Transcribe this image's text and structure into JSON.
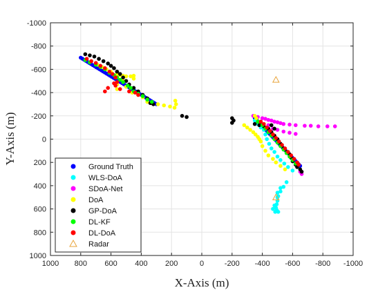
{
  "chart_data": {
    "type": "scatter",
    "xlabel": "X-Axis (m)",
    "ylabel": "Y-Axis (m)",
    "xlim": [
      1000,
      -1000
    ],
    "ylim": [
      1000,
      -1000
    ],
    "x_reversed": true,
    "y_reversed": true,
    "xticks": [
      1000,
      800,
      600,
      400,
      200,
      0,
      -200,
      -400,
      -600,
      -800,
      -1000
    ],
    "yticks": [
      -1000,
      -800,
      -600,
      -400,
      -200,
      0,
      200,
      400,
      600,
      800,
      1000
    ],
    "xtick_labels": [
      "1000",
      "800",
      "600",
      "400",
      "200",
      "0",
      "-200",
      "-400",
      "-600",
      "-800",
      "-1000"
    ],
    "ytick_labels": [
      "-1000",
      "-800",
      "-600",
      "-400",
      "-200",
      "0",
      "200",
      "400",
      "600",
      "800",
      "1000"
    ],
    "grid": true,
    "legend_position": "bottom-left",
    "series": [
      {
        "name": "Ground Truth",
        "color": "#0000ff",
        "marker": "circle",
        "segments": [
          {
            "from": [
              800,
              -700
            ],
            "to": [
              300,
              -300
            ],
            "count": 45
          },
          {
            "from": [
              -350,
              -180
            ],
            "to": [
              -650,
              230
            ],
            "count": 40
          }
        ]
      },
      {
        "name": "WLS-DoA",
        "color": "#00ffff",
        "marker": "circle",
        "points": [
          [
            -350,
            -160
          ],
          [
            -370,
            -130
          ],
          [
            -390,
            -100
          ],
          [
            -410,
            -80
          ],
          [
            -420,
            -40
          ],
          [
            -430,
            0
          ],
          [
            -445,
            40
          ],
          [
            -460,
            80
          ],
          [
            -480,
            110
          ],
          [
            -500,
            150
          ],
          [
            -520,
            180
          ],
          [
            -545,
            210
          ],
          [
            -570,
            240
          ],
          [
            -600,
            270
          ],
          [
            -560,
            370
          ],
          [
            -540,
            410
          ],
          [
            -520,
            450
          ],
          [
            -505,
            490
          ],
          [
            -500,
            530
          ],
          [
            -495,
            560
          ],
          [
            -490,
            590
          ],
          [
            -495,
            610
          ],
          [
            -505,
            625
          ],
          [
            -485,
            625
          ],
          [
            -470,
            600
          ],
          [
            -480,
            570
          ],
          [
            -500,
            500
          ],
          [
            -500,
            460
          ],
          [
            -520,
            420
          ]
        ]
      },
      {
        "name": "SDoA-Net",
        "color": "#ff00ff",
        "marker": "circle",
        "points": [
          [
            -340,
            -200
          ],
          [
            -370,
            -190
          ],
          [
            -400,
            -180
          ],
          [
            -420,
            -175
          ],
          [
            -440,
            -165
          ],
          [
            -460,
            -160
          ],
          [
            -480,
            -150
          ],
          [
            -500,
            -145
          ],
          [
            -520,
            -138
          ],
          [
            -540,
            -130
          ],
          [
            -580,
            -125
          ],
          [
            -620,
            -120
          ],
          [
            -680,
            -115
          ],
          [
            -720,
            -115
          ],
          [
            -770,
            -110
          ],
          [
            -830,
            -110
          ],
          [
            -880,
            -110
          ],
          [
            -440,
            -120
          ],
          [
            -470,
            -90
          ],
          [
            -500,
            -80
          ],
          [
            -540,
            -65
          ],
          [
            -580,
            -55
          ],
          [
            -620,
            -45
          ],
          [
            -650,
            280
          ],
          [
            -660,
            300
          ]
        ]
      },
      {
        "name": "DoA",
        "color": "#ffff00",
        "marker": "circle",
        "points": [
          [
            690,
            -640
          ],
          [
            660,
            -620
          ],
          [
            630,
            -600
          ],
          [
            600,
            -580
          ],
          [
            560,
            -560
          ],
          [
            540,
            -550
          ],
          [
            520,
            -545
          ],
          [
            500,
            -540
          ],
          [
            470,
            -540
          ],
          [
            450,
            -545
          ],
          [
            450,
            -520
          ],
          [
            520,
            -500
          ],
          [
            560,
            -470
          ],
          [
            560,
            -430
          ],
          [
            500,
            -450
          ],
          [
            460,
            -400
          ],
          [
            420,
            -380
          ],
          [
            390,
            -360
          ],
          [
            360,
            -320
          ],
          [
            330,
            -310
          ],
          [
            290,
            -300
          ],
          [
            250,
            -290
          ],
          [
            210,
            -280
          ],
          [
            180,
            -270
          ],
          [
            170,
            -300
          ],
          [
            175,
            -330
          ],
          [
            -280,
            -120
          ],
          [
            -300,
            -100
          ],
          [
            -320,
            -80
          ],
          [
            -340,
            -60
          ],
          [
            -355,
            -40
          ],
          [
            -370,
            -20
          ],
          [
            -380,
            0
          ],
          [
            -390,
            20
          ],
          [
            -400,
            60
          ],
          [
            -420,
            100
          ],
          [
            -440,
            140
          ],
          [
            -470,
            170
          ],
          [
            -490,
            200
          ],
          [
            -520,
            230
          ],
          [
            -550,
            260
          ],
          [
            -380,
            -150
          ],
          [
            -360,
            -180
          ],
          [
            -350,
            -200
          ]
        ]
      },
      {
        "name": "GP-DoA",
        "color": "#000000",
        "marker": "circle",
        "points": [
          [
            770,
            -730
          ],
          [
            740,
            -720
          ],
          [
            710,
            -710
          ],
          [
            680,
            -690
          ],
          [
            650,
            -670
          ],
          [
            620,
            -650
          ],
          [
            600,
            -630
          ],
          [
            580,
            -610
          ],
          [
            560,
            -580
          ],
          [
            540,
            -560
          ],
          [
            520,
            -530
          ],
          [
            500,
            -500
          ],
          [
            480,
            -470
          ],
          [
            450,
            -440
          ],
          [
            420,
            -410
          ],
          [
            390,
            -380
          ],
          [
            360,
            -350
          ],
          [
            340,
            -310
          ],
          [
            320,
            -300
          ],
          [
            130,
            -200
          ],
          [
            100,
            -190
          ],
          [
            -200,
            -180
          ],
          [
            -210,
            -160
          ],
          [
            -200,
            -140
          ],
          [
            -350,
            -130
          ],
          [
            -380,
            -120
          ],
          [
            -410,
            -110
          ],
          [
            -440,
            -90
          ],
          [
            -460,
            -60
          ],
          [
            -480,
            -30
          ],
          [
            -500,
            0
          ],
          [
            -520,
            40
          ],
          [
            -540,
            80
          ],
          [
            -560,
            110
          ],
          [
            -580,
            130
          ],
          [
            -590,
            160
          ],
          [
            -600,
            190
          ],
          [
            -620,
            220
          ],
          [
            -630,
            240
          ],
          [
            -650,
            260
          ],
          [
            -660,
            280
          ],
          [
            -460,
            -120
          ],
          [
            -480,
            -90
          ]
        ]
      },
      {
        "name": "DL-KF",
        "color": "#00ff00",
        "marker": "circle",
        "points": [
          [
            770,
            -680
          ],
          [
            740,
            -660
          ],
          [
            700,
            -640
          ],
          [
            670,
            -620
          ],
          [
            640,
            -600
          ],
          [
            610,
            -570
          ],
          [
            580,
            -550
          ],
          [
            560,
            -530
          ],
          [
            540,
            -510
          ],
          [
            520,
            -490
          ],
          [
            490,
            -460
          ],
          [
            470,
            -440
          ],
          [
            450,
            -410
          ],
          [
            420,
            -390
          ],
          [
            390,
            -370
          ],
          [
            360,
            -340
          ],
          [
            330,
            -320
          ],
          [
            -370,
            -150
          ],
          [
            -400,
            -120
          ],
          [
            -420,
            -90
          ],
          [
            -440,
            -60
          ],
          [
            -460,
            -30
          ],
          [
            -480,
            0
          ],
          [
            -500,
            30
          ],
          [
            -520,
            60
          ],
          [
            -540,
            90
          ],
          [
            -560,
            120
          ],
          [
            -580,
            150
          ],
          [
            -600,
            180
          ],
          [
            -620,
            210
          ]
        ]
      },
      {
        "name": "DL-DoA",
        "color": "#ff0000",
        "marker": "circle",
        "points": [
          [
            760,
            -690
          ],
          [
            730,
            -670
          ],
          [
            700,
            -655
          ],
          [
            670,
            -630
          ],
          [
            640,
            -610
          ],
          [
            610,
            -580
          ],
          [
            590,
            -560
          ],
          [
            570,
            -530
          ],
          [
            560,
            -490
          ],
          [
            570,
            -460
          ],
          [
            540,
            -430
          ],
          [
            480,
            -410
          ],
          [
            440,
            -400
          ],
          [
            420,
            -380
          ],
          [
            580,
            -480
          ],
          [
            620,
            -440
          ],
          [
            640,
            -410
          ],
          [
            -390,
            -150
          ],
          [
            -410,
            -130
          ],
          [
            -430,
            -100
          ],
          [
            -450,
            -70
          ],
          [
            -470,
            -40
          ],
          [
            -490,
            -10
          ],
          [
            -510,
            20
          ],
          [
            -530,
            50
          ],
          [
            -550,
            80
          ],
          [
            -570,
            110
          ],
          [
            -590,
            140
          ],
          [
            -610,
            170
          ],
          [
            -630,
            200
          ],
          [
            -640,
            220
          ]
        ]
      },
      {
        "name": "Radar",
        "color": "#e8a33a",
        "marker": "triangle-open",
        "points": [
          [
            -490,
            -510
          ],
          [
            -490,
            500
          ]
        ]
      }
    ]
  }
}
